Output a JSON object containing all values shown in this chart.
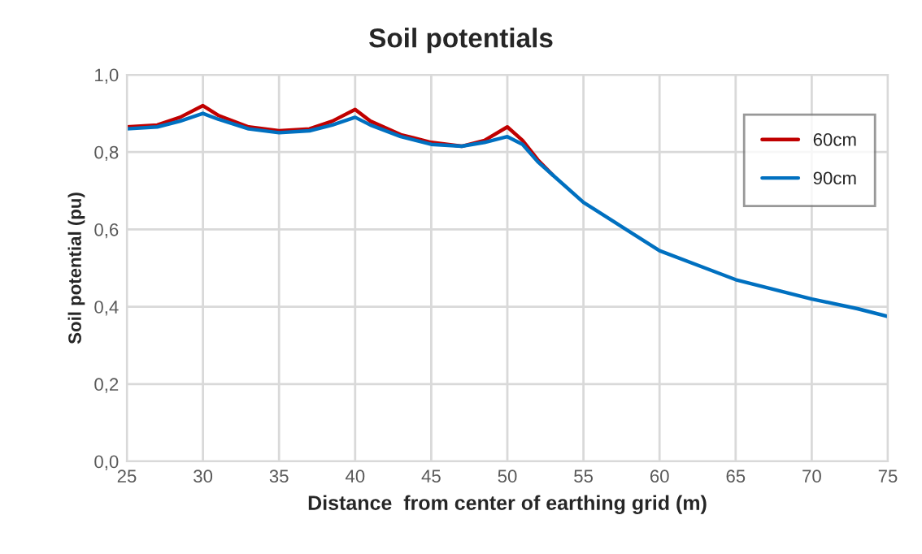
{
  "chart_data": {
    "type": "line",
    "title": "Soil potentials",
    "xlabel": "Distance  from center of earthing grid (m)",
    "ylabel": "Soil potential (pu)",
    "x": [
      25,
      27,
      28.5,
      30,
      31,
      33,
      35,
      37,
      38.5,
      40,
      41,
      43,
      45,
      47,
      48.5,
      50,
      51,
      52,
      53,
      55,
      57,
      60,
      63,
      65,
      68,
      70,
      73,
      75
    ],
    "series": [
      {
        "name": "60cm",
        "color": "#c00000",
        "values": [
          0.865,
          0.87,
          0.89,
          0.92,
          0.895,
          0.865,
          0.855,
          0.86,
          0.88,
          0.91,
          0.88,
          0.845,
          0.825,
          0.815,
          0.83,
          0.865,
          0.83,
          0.78,
          0.74,
          null,
          null,
          null,
          null,
          null,
          null,
          null,
          null,
          null
        ]
      },
      {
        "name": "90cm",
        "color": "#0070c0",
        "values": [
          0.86,
          0.865,
          0.88,
          0.9,
          0.885,
          0.86,
          0.85,
          0.855,
          0.87,
          0.89,
          0.87,
          0.84,
          0.82,
          0.815,
          0.825,
          0.84,
          0.82,
          0.775,
          0.74,
          0.67,
          0.62,
          0.545,
          0.5,
          0.47,
          0.44,
          0.42,
          0.395,
          0.375
        ]
      }
    ],
    "xlim": [
      25,
      75
    ],
    "xticks": [
      25,
      30,
      35,
      40,
      45,
      50,
      55,
      60,
      65,
      70,
      75
    ],
    "ylim": [
      0,
      1
    ],
    "yticks": [
      {
        "value": 0,
        "label": "0,0"
      },
      {
        "value": 0.2,
        "label": "0,2"
      },
      {
        "value": 0.4,
        "label": "0,4"
      },
      {
        "value": 0.6,
        "label": "0,6"
      },
      {
        "value": 0.8,
        "label": "0,8"
      },
      {
        "value": 1,
        "label": "1,0"
      }
    ],
    "grid": true,
    "legend": "top right",
    "marker": "none",
    "line_style": "solid"
  }
}
